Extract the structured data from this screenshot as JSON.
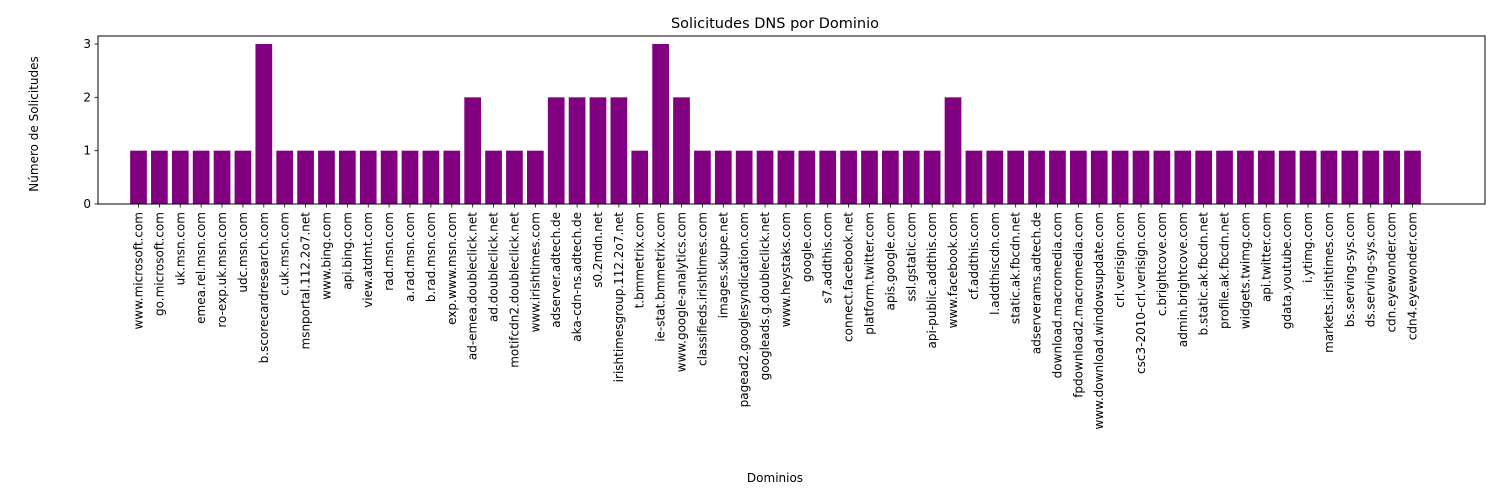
{
  "chart_data": {
    "type": "bar",
    "title": "Solicitudes DNS por Dominio",
    "xlabel": "Dominios",
    "ylabel": "Número de Solicitudes",
    "ylim": [
      0,
      3.15
    ],
    "yticks": [
      "0",
      "1",
      "2",
      "3"
    ],
    "grid": false,
    "legend": "none",
    "bar_color": "#800080",
    "categories": [
      "www.microsoft.com",
      "go.microsoft.com",
      "uk.msn.com",
      "emea.rel.msn.com",
      "ro-exp.uk.msn.com",
      "udc.msn.com",
      "b.scorecardresearch.com",
      "c.uk.msn.com",
      "msnportal.112.2o7.net",
      "www.bing.com",
      "api.bing.com",
      "view.atdmt.com",
      "rad.msn.com",
      "a.rad.msn.com",
      "b.rad.msn.com",
      "exp.www.msn.com",
      "ad-emea.doubleclick.net",
      "ad.doubleclick.net",
      "motifcdn2.doubleclick.net",
      "www.irishtimes.com",
      "adserver.adtech.de",
      "aka-cdn-ns.adtech.de",
      "s0.2mdn.net",
      "irishtimesgroup.112.2o7.net",
      "t.bmmetrix.com",
      "ie-stat.bmmetrix.com",
      "www.google-analytics.com",
      "classifieds.irishtimes.com",
      "images.skupe.net",
      "pagead2.googlesyndication.com",
      "googleads.g.doubleclick.net",
      "www.heystaks.com",
      "google.com",
      "s7.addthis.com",
      "connect.facebook.net",
      "platform.twitter.com",
      "apis.google.com",
      "ssl.gstatic.com",
      "api-public.addthis.com",
      "www.facebook.com",
      "cf.addthis.com",
      "l.addthiscdn.com",
      "static.ak.fbcdn.net",
      "adserverams.adtech.de",
      "download.macromedia.com",
      "fpdownload2.macromedia.com",
      "www.download.windowsupdate.com",
      "crl.verisign.com",
      "csc3-2010-crl.verisign.com",
      "c.brightcove.com",
      "admin.brightcove.com",
      "b.static.ak.fbcdn.net",
      "profile.ak.fbcdn.net",
      "widgets.twimg.com",
      "api.twitter.com",
      "gdata.youtube.com",
      "i.ytimg.com",
      "markets.irishtimes.com",
      "bs.serving-sys.com",
      "ds.serving-sys.com",
      "cdn.eyewonder.com",
      "cdn4.eyewonder.com"
    ],
    "values": [
      1,
      1,
      1,
      1,
      1,
      1,
      3,
      1,
      1,
      1,
      1,
      1,
      1,
      1,
      1,
      1,
      2,
      1,
      1,
      1,
      2,
      2,
      2,
      2,
      1,
      3,
      2,
      1,
      1,
      1,
      1,
      1,
      1,
      1,
      1,
      1,
      1,
      1,
      1,
      2,
      1,
      1,
      1,
      1,
      1,
      1,
      1,
      1,
      1,
      1,
      1,
      1,
      1,
      1,
      1,
      1,
      1,
      1,
      1,
      1,
      1,
      1
    ]
  }
}
